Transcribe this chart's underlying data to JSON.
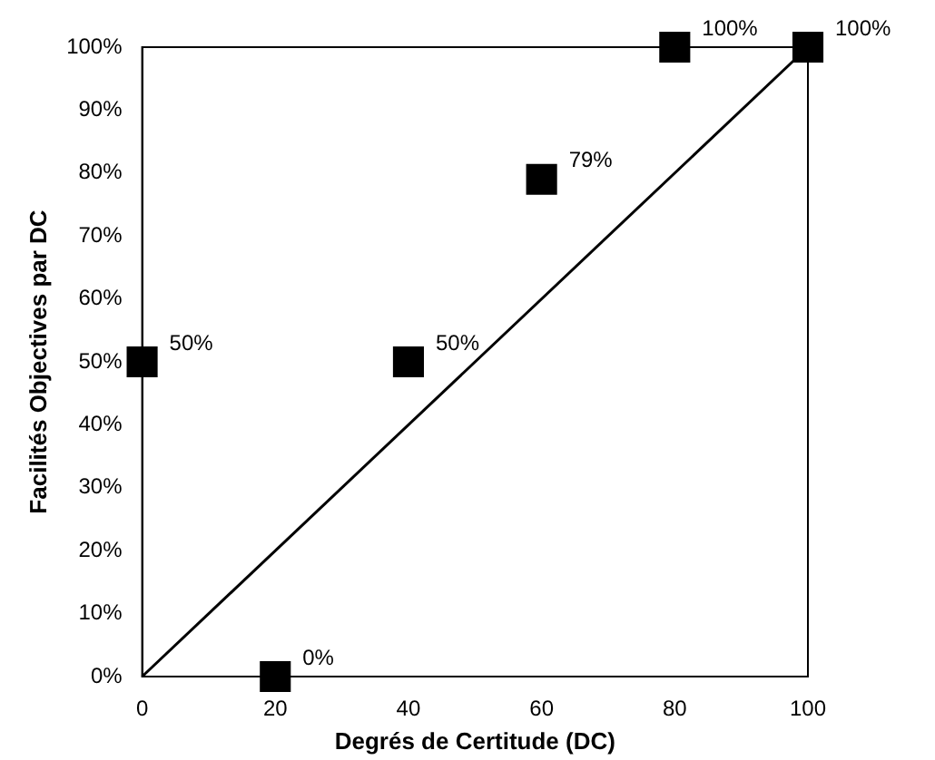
{
  "chart_data": {
    "type": "scatter",
    "xlabel": "Degrés de Certitude (DC)",
    "ylabel": "Facilités Objectives par DC",
    "xlim": [
      0,
      100
    ],
    "xticks": [
      0,
      20,
      40,
      60,
      80,
      100
    ],
    "ylim": [
      0,
      100
    ],
    "yticks": [
      {
        "value": 0,
        "label": "0%"
      },
      {
        "value": 10,
        "label": "10%"
      },
      {
        "value": 20,
        "label": "20%"
      },
      {
        "value": 30,
        "label": "30%"
      },
      {
        "value": 40,
        "label": "40%"
      },
      {
        "value": 50,
        "label": "50%"
      },
      {
        "value": 60,
        "label": "60%"
      },
      {
        "value": 70,
        "label": "70%"
      },
      {
        "value": 80,
        "label": "80%"
      },
      {
        "value": 90,
        "label": "90%"
      },
      {
        "value": 100,
        "label": "100%"
      }
    ],
    "grid": false,
    "legend": false,
    "marker": "square",
    "series": [
      {
        "color": "#000000",
        "x": [
          0,
          20,
          40,
          60,
          80,
          100
        ],
        "values": [
          50,
          0,
          50,
          79,
          100,
          100
        ],
        "value_labels": [
          "50%",
          "0%",
          "50%",
          "79%",
          "100%",
          "100%"
        ]
      },
      {
        "type": "line",
        "color": "#000000",
        "x": [
          0,
          100
        ],
        "values": [
          0,
          100
        ],
        "marker": "none",
        "line_style": "solid"
      }
    ]
  }
}
